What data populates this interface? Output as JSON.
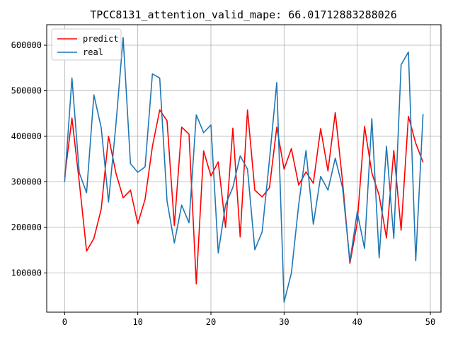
{
  "chart_data": {
    "type": "line",
    "title": "TPCC8131_attention_valid_mape: 66.01712883288026",
    "xlabel": "",
    "ylabel": "",
    "xlim": [
      -2.45,
      51.45
    ],
    "ylim": [
      14000,
      645000
    ],
    "x_ticks": [
      0,
      10,
      20,
      30,
      40,
      50
    ],
    "y_ticks": [
      100000,
      200000,
      300000,
      400000,
      500000,
      600000
    ],
    "x_tick_labels": [
      "0",
      "10",
      "20",
      "30",
      "40",
      "50"
    ],
    "y_tick_labels": [
      "100000",
      "200000",
      "300000",
      "400000",
      "500000",
      "600000"
    ],
    "grid": true,
    "legend_position": "top-left",
    "x": [
      0,
      1,
      2,
      3,
      4,
      5,
      6,
      7,
      8,
      9,
      10,
      11,
      12,
      13,
      14,
      15,
      16,
      17,
      18,
      19,
      20,
      21,
      22,
      23,
      24,
      25,
      26,
      27,
      28,
      29,
      30,
      31,
      32,
      33,
      34,
      35,
      36,
      37,
      38,
      39,
      40,
      41,
      42,
      43,
      44,
      45,
      46,
      47,
      48,
      49
    ],
    "series": [
      {
        "name": "predict",
        "color": "#ff0000",
        "values": [
          310000,
          440000,
          300000,
          148000,
          176000,
          240000,
          400000,
          320000,
          265000,
          282000,
          208000,
          262000,
          378000,
          458000,
          434000,
          204000,
          420000,
          405000,
          76000,
          368000,
          313000,
          344000,
          200000,
          418000,
          179000,
          458000,
          282000,
          267000,
          287000,
          420000,
          328000,
          373000,
          293000,
          322000,
          297000,
          417000,
          324000,
          452000,
          300000,
          121000,
          210000,
          422000,
          320000,
          270000,
          177000,
          369000,
          194000,
          444000,
          385000,
          343000
        ]
      },
      {
        "name": "real",
        "color": "#1f77b4",
        "values": [
          300000,
          528000,
          320000,
          276000,
          491000,
          419000,
          256000,
          424000,
          617000,
          340000,
          321000,
          333000,
          537000,
          528000,
          258000,
          166000,
          249000,
          210000,
          447000,
          408000,
          425000,
          144000,
          250000,
          288000,
          357000,
          328000,
          151000,
          190000,
          348000,
          518000,
          36000,
          100000,
          250000,
          369000,
          207000,
          312000,
          282000,
          352000,
          287000,
          125000,
          234000,
          154000,
          439000,
          133000,
          378000,
          176000,
          557000,
          585000,
          127000,
          449000
        ]
      }
    ]
  }
}
